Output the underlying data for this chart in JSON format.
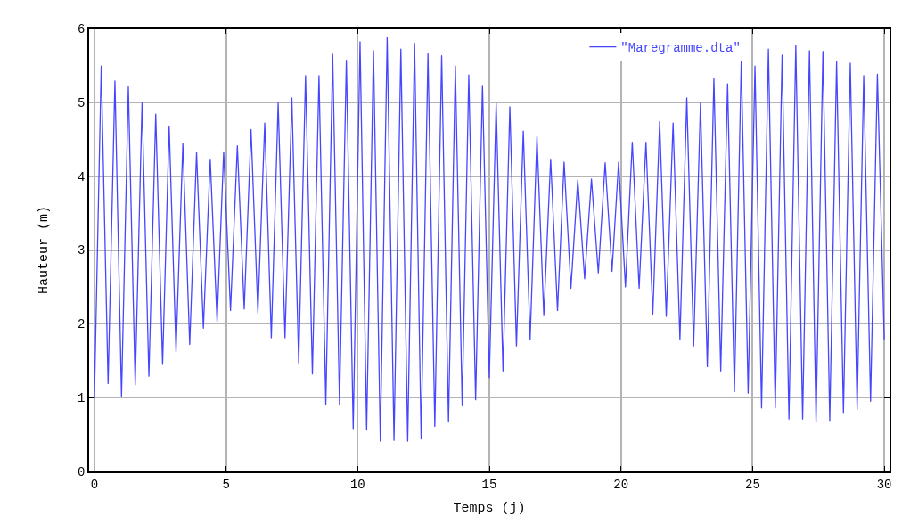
{
  "chart_data": {
    "type": "line",
    "xlabel": "Temps (j)",
    "ylabel": "Hauteur (m)",
    "xlim": [
      -0.2,
      30.2
    ],
    "xticks": [
      0,
      5,
      10,
      15,
      20,
      25,
      30
    ],
    "ylim": [
      0,
      6
    ],
    "yticks": [
      0,
      1,
      2,
      3,
      4,
      5,
      6
    ],
    "grid": true,
    "legend": "top right",
    "marker": "none",
    "line_style": "solid",
    "series": [
      {
        "name": "\"Maregramme.dta\"",
        "color": "#4646ff",
        "x": [
          0,
          0.26,
          0.52,
          0.78,
          1.03,
          1.29,
          1.55,
          1.81,
          2.07,
          2.33,
          2.59,
          2.84,
          3.1,
          3.36,
          3.62,
          3.88,
          4.14,
          4.4,
          4.66,
          4.91,
          5.17,
          5.43,
          5.69,
          5.95,
          6.21,
          6.47,
          6.72,
          6.98,
          7.24,
          7.5,
          7.76,
          8.02,
          8.28,
          8.53,
          8.79,
          9.05,
          9.31,
          9.57,
          9.83,
          10.09,
          10.34,
          10.6,
          10.86,
          11.12,
          11.38,
          11.64,
          11.9,
          12.16,
          12.41,
          12.67,
          12.93,
          13.19,
          13.45,
          13.71,
          13.97,
          14.22,
          14.48,
          14.74,
          15.0,
          15.26,
          15.52,
          15.78,
          16.03,
          16.29,
          16.55,
          16.81,
          17.07,
          17.33,
          17.59,
          17.84,
          18.1,
          18.36,
          18.62,
          18.88,
          19.14,
          19.4,
          19.66,
          19.91,
          20.17,
          20.43,
          20.69,
          20.95,
          21.21,
          21.47,
          21.72,
          21.98,
          22.24,
          22.5,
          22.76,
          23.02,
          23.28,
          23.53,
          23.79,
          24.05,
          24.31,
          24.57,
          24.83,
          25.09,
          25.34,
          25.6,
          25.86,
          26.12,
          26.38,
          26.64,
          26.9,
          27.16,
          27.41,
          27.67,
          27.93,
          28.19,
          28.45,
          28.71,
          28.97,
          29.22,
          29.48,
          29.74,
          30.0
        ],
        "values": [
          0.99,
          5.49,
          1.19,
          5.29,
          1.02,
          5.21,
          1.17,
          4.99,
          1.29,
          4.84,
          1.45,
          4.68,
          1.62,
          4.44,
          1.72,
          4.32,
          1.94,
          4.23,
          2.03,
          4.33,
          2.18,
          4.41,
          2.2,
          4.63,
          2.15,
          4.72,
          1.81,
          4.99,
          1.81,
          5.06,
          1.47,
          5.36,
          1.32,
          5.36,
          0.91,
          5.65,
          0.91,
          5.57,
          0.58,
          5.82,
          0.56,
          5.7,
          0.41,
          5.88,
          0.42,
          5.72,
          0.41,
          5.8,
          0.44,
          5.66,
          0.61,
          5.63,
          0.67,
          5.49,
          0.89,
          5.37,
          0.97,
          5.23,
          1.27,
          4.99,
          1.36,
          4.94,
          1.7,
          4.61,
          1.79,
          4.54,
          2.11,
          4.23,
          2.18,
          4.19,
          2.48,
          3.95,
          2.61,
          3.96,
          2.69,
          4.18,
          2.71,
          4.19,
          2.5,
          4.46,
          2.48,
          4.46,
          2.13,
          4.74,
          2.1,
          4.72,
          1.79,
          5.06,
          1.7,
          4.99,
          1.42,
          5.32,
          1.36,
          5.25,
          1.08,
          5.57,
          1.06,
          5.49,
          0.86,
          5.72,
          0.86,
          5.64,
          0.71,
          5.77,
          0.71,
          5.7,
          0.67,
          5.69,
          0.69,
          5.55,
          0.8,
          5.53,
          0.84,
          5.36,
          0.95,
          5.38,
          1.79
        ]
      }
    ]
  }
}
